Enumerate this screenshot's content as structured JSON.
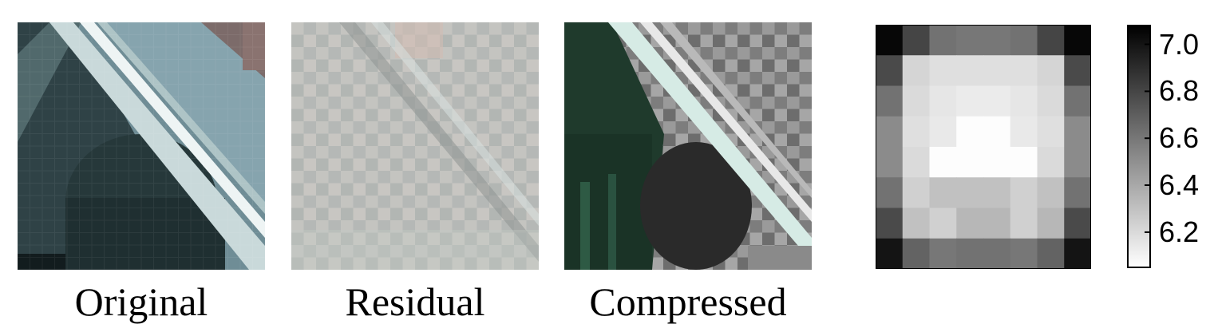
{
  "figure": {
    "panels": [
      {
        "id": "original",
        "caption": "Original"
      },
      {
        "id": "residual",
        "caption": "Residual"
      },
      {
        "id": "compressed",
        "caption": "Compressed"
      }
    ]
  },
  "chart_data": {
    "type": "heatmap",
    "rows": 8,
    "cols": 8,
    "values": [
      [
        7.05,
        6.8,
        6.62,
        6.6,
        6.6,
        6.62,
        6.8,
        7.05
      ],
      [
        6.78,
        6.22,
        6.18,
        6.18,
        6.18,
        6.18,
        6.22,
        6.78
      ],
      [
        6.62,
        6.2,
        6.15,
        6.13,
        6.13,
        6.15,
        6.2,
        6.62
      ],
      [
        6.52,
        6.18,
        6.14,
        6.06,
        6.06,
        6.14,
        6.18,
        6.52
      ],
      [
        6.52,
        6.2,
        6.06,
        6.06,
        6.06,
        6.06,
        6.2,
        6.52
      ],
      [
        6.62,
        6.24,
        6.3,
        6.3,
        6.3,
        6.24,
        6.3,
        6.62
      ],
      [
        6.78,
        6.3,
        6.24,
        6.34,
        6.34,
        6.24,
        6.34,
        6.78
      ],
      [
        7.0,
        6.68,
        6.6,
        6.62,
        6.62,
        6.6,
        6.68,
        7.0
      ]
    ],
    "colorbar": {
      "min": 6.05,
      "max": 7.08,
      "ticks": [
        7.0,
        6.8,
        6.6,
        6.4,
        6.2
      ],
      "tick_labels": [
        "7.0",
        "6.8",
        "6.6",
        "6.4",
        "6.2"
      ],
      "colormap": "gray (white = low, black = high)"
    }
  }
}
